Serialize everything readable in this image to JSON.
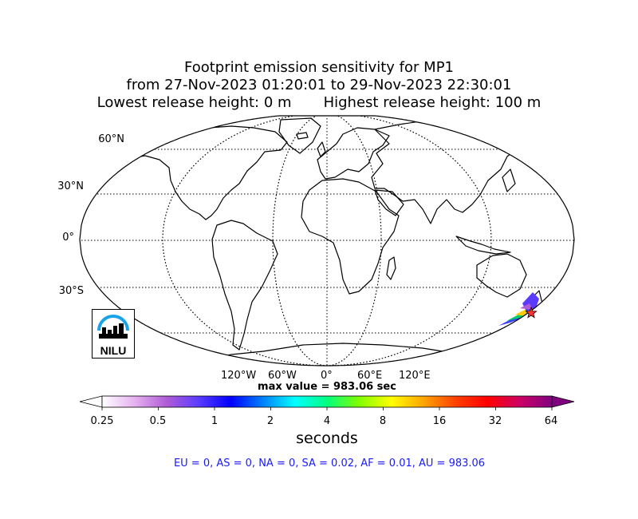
{
  "title": {
    "line1": "Footprint emission sensitivity for MP1",
    "line2": "from 27-Nov-2023 01:20:01 to 29-Nov-2023 22:30:01",
    "line3": "Lowest release height: 0 m       Highest release height: 100 m"
  },
  "map": {
    "projection": "robinson",
    "lat_labels": [
      "60°N",
      "30°N",
      "0°",
      "30°S"
    ],
    "lon_labels": [
      "120°W",
      "60°W",
      "0°",
      "60°E",
      "120°E"
    ],
    "max_value": "max value = 983.06 sec",
    "release_marker": "star-icon"
  },
  "colorbar": {
    "ticks": [
      "0.25",
      "0.5",
      "1",
      "2",
      "4",
      "8",
      "16",
      "32",
      "64"
    ],
    "label": "seconds",
    "colors": [
      "#ffffff",
      "#e6b3f0",
      "#b05cd6",
      "#5b3cff",
      "#0000ff",
      "#0080ff",
      "#00ffff",
      "#00ff80",
      "#80ff00",
      "#ffff00",
      "#ffa500",
      "#ff4000",
      "#ff0000",
      "#cc0066",
      "#800080"
    ]
  },
  "totals": "EU = 0,  AS = 0,  NA = 0,  SA = 0.02,  AF = 0.01,  AU = 983.06",
  "logo": {
    "text": "NILU"
  }
}
